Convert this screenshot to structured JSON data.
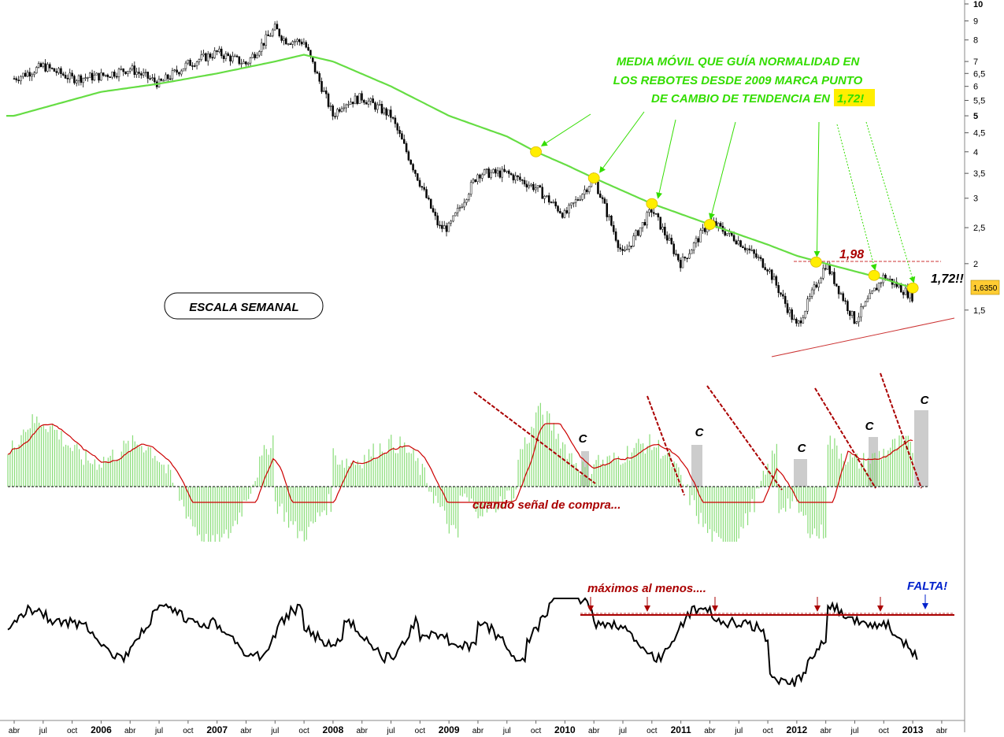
{
  "chart_data": [
    {
      "type": "candlestick",
      "panel": "price",
      "y_scale": "log",
      "ylim": [
        1.2,
        10
      ],
      "y_ticks": [
        "10",
        "9",
        "8",
        "7",
        "6,5",
        "6",
        "5,5",
        "5",
        "4,5",
        "4",
        "3,5",
        "3",
        "2,5",
        "2",
        "1,5"
      ],
      "last_price_label": "1,6350",
      "series": [
        {
          "name": "",
          "type": "close_path_approx",
          "x": [
            "2005-04",
            "2005-07",
            "2005-10",
            "2006-01",
            "2006-04",
            "2006-07",
            "2006-10",
            "2007-01",
            "2007-04",
            "2007-07",
            "2007-08",
            "2007-10",
            "2008-01",
            "2008-02",
            "2008-04",
            "2008-07",
            "2008-10",
            "2008-12",
            "2009-01",
            "2009-04",
            "2009-07",
            "2009-10",
            "2010-01",
            "2010-04",
            "2010-07",
            "2010-10",
            "2011-01",
            "2011-04",
            "2011-07",
            "2011-10",
            "2012-01",
            "2012-04",
            "2012-07",
            "2012-10",
            "2013-01"
          ],
          "y": [
            6.3,
            6.8,
            6.3,
            6.4,
            6.7,
            6.1,
            6.9,
            7.4,
            6.9,
            8.6,
            8.0,
            7.9,
            5.0,
            5.4,
            5.6,
            5.0,
            3.3,
            2.5,
            2.5,
            3.5,
            3.5,
            3.2,
            2.7,
            3.4,
            2.1,
            2.8,
            2.0,
            2.6,
            2.3,
            1.95,
            1.35,
            2.0,
            1.4,
            1.85,
            1.63
          ]
        },
        {
          "name": "",
          "type": "moving_average_approx",
          "x": [
            "2005-04",
            "2006-01",
            "2006-07",
            "2007-01",
            "2007-07",
            "2007-10",
            "2008-01",
            "2008-07",
            "2009-01",
            "2009-07",
            "2009-10",
            "2010-01",
            "2010-04",
            "2010-10",
            "2011-04",
            "2011-10",
            "2012-01",
            "2012-04",
            "2012-10",
            "2013-01"
          ],
          "y": [
            5.0,
            5.8,
            6.1,
            6.5,
            7.0,
            7.3,
            7.0,
            6.0,
            5.0,
            4.4,
            4.0,
            3.7,
            3.4,
            2.9,
            2.55,
            2.25,
            2.1,
            2.0,
            1.82,
            1.72
          ]
        }
      ],
      "annotations": {
        "ma_note_line1": "MEDIA MÓVIL QUE GUÍA NORMALIDAD EN",
        "ma_note_line2": "LOS REBOTES DESDE 2009 MARCA PUNTO",
        "ma_note_line3": "DE CAMBIO DE TENDENCIA EN",
        "ma_note_value": "1,72!",
        "level_198": "1,98",
        "level_172": "1,72!!",
        "scale_box": "ESCALA SEMANAL"
      }
    },
    {
      "type": "bar",
      "panel": "momentum",
      "annotations": {
        "buy_signal_note": "cuando señal de compra...",
        "signal_marker": "C"
      }
    },
    {
      "type": "line",
      "panel": "oscillator",
      "annotations": {
        "max_note": "máximos al menos....",
        "missing_note": "FALTA!"
      }
    }
  ],
  "x_axis": {
    "labels": [
      "abr",
      "jul",
      "oct",
      "2006",
      "abr",
      "jul",
      "oct",
      "2007",
      "abr",
      "jul",
      "oct",
      "2008",
      "abr",
      "jul",
      "oct",
      "2009",
      "abr",
      "jul",
      "oct",
      "2010",
      "abr",
      "jul",
      "oct",
      "2011",
      "abr",
      "jul",
      "oct",
      "2012",
      "abr",
      "jul",
      "oct",
      "2013",
      "abr"
    ]
  },
  "colors": {
    "candle": "#000000",
    "moving_average": "#66dd44",
    "annotation_green": "#33dd00",
    "annotation_red": "#aa0000",
    "marker_yellow": "#ffee00",
    "histogram": "#88dd77",
    "signal_line": "#cc0000",
    "oscillator": "#000000",
    "missing_blue": "#0022cc"
  }
}
